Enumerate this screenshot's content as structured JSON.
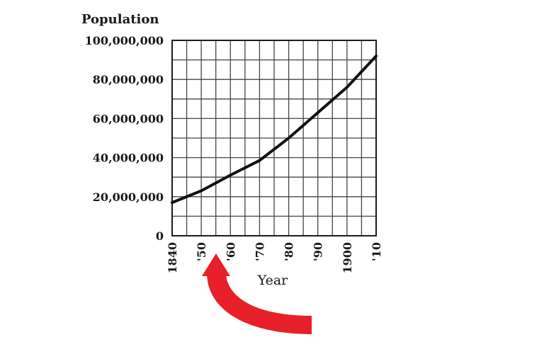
{
  "chart_data": {
    "type": "line",
    "ylabel": "Population",
    "xlabel": "Year",
    "ylim": [
      0,
      100000000
    ],
    "xlim": [
      1840,
      1910
    ],
    "grid": true,
    "x_tick_values": [
      1840,
      1850,
      1860,
      1870,
      1880,
      1890,
      1900,
      1910
    ],
    "x_tick_labels": [
      "1840",
      "'50",
      "'60",
      "'70",
      "'80",
      "'90",
      "1900",
      "'10"
    ],
    "y_tick_values": [
      0,
      20000000,
      40000000,
      60000000,
      80000000,
      100000000
    ],
    "y_tick_labels": [
      "0",
      "20,000,000",
      "40,000,000",
      "60,000,000",
      "80,000,000",
      "100,000,000"
    ],
    "series": [
      {
        "x": [
          1840,
          1850,
          1860,
          1870,
          1880,
          1890,
          1900,
          1910
        ],
        "values": [
          17000000,
          23000000,
          31000000,
          38500000,
          50000000,
          63000000,
          76000000,
          92000000
        ],
        "color": "#111111"
      }
    ]
  },
  "annotation": {
    "type": "curved-arrow",
    "color": "#e8202a",
    "points_to": "'50"
  }
}
